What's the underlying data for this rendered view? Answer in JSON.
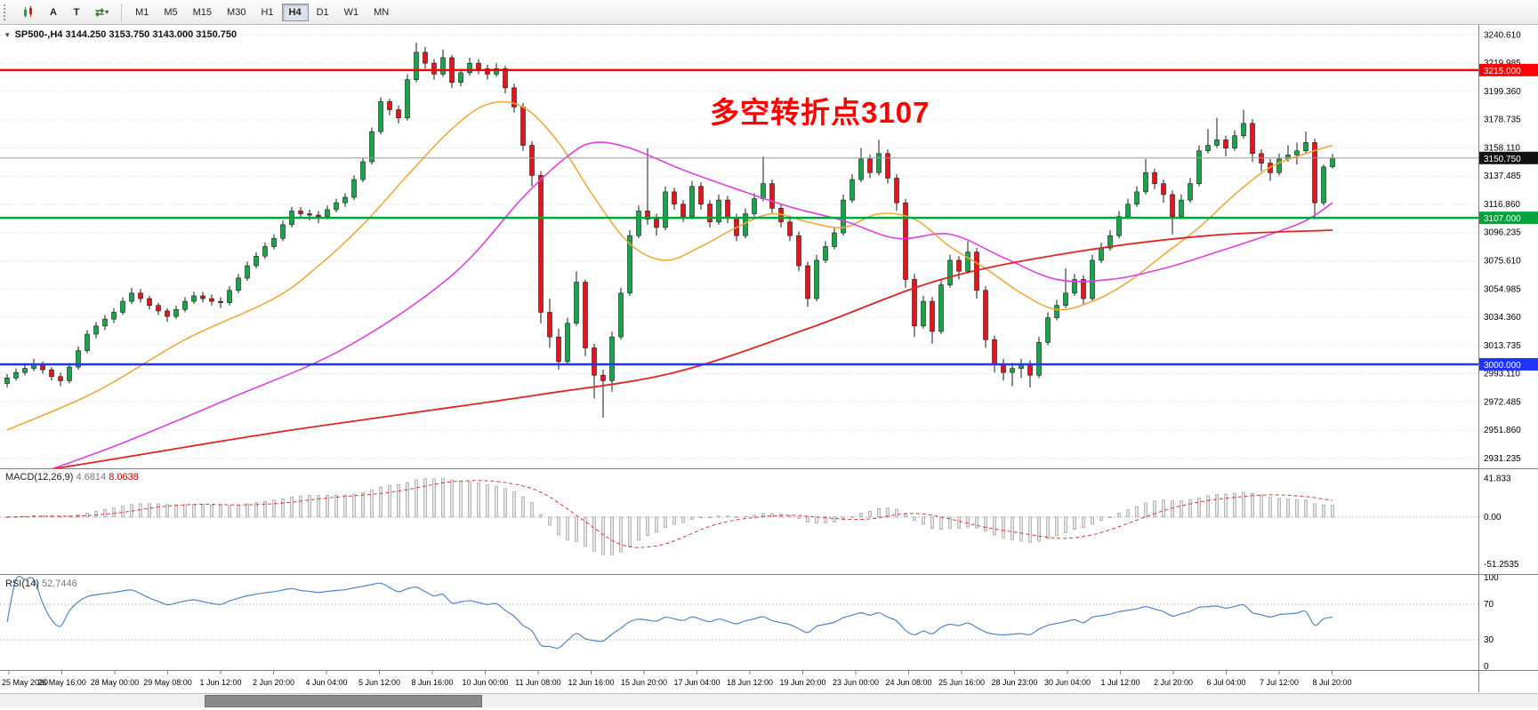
{
  "toolbar": {
    "tools": {
      "text_tool": "A",
      "label_tool": "T"
    },
    "timeframes": [
      {
        "label": "M1",
        "active": false
      },
      {
        "label": "M5",
        "active": false
      },
      {
        "label": "M15",
        "active": false
      },
      {
        "label": "M30",
        "active": false
      },
      {
        "label": "H1",
        "active": false
      },
      {
        "label": "H4",
        "active": true
      },
      {
        "label": "D1",
        "active": false
      },
      {
        "label": "W1",
        "active": false
      },
      {
        "label": "MN",
        "active": false
      }
    ]
  },
  "chart": {
    "title_symbol": "SP500-,H4",
    "title_ohlc": "3144.250 3153.750 3143.000 3150.750",
    "colors": {
      "up": "#18a64a",
      "down": "#e6151c"
    }
  },
  "indicators": {
    "macd": {
      "name": "MACD(12,26,9)",
      "value_main": "4.6814",
      "value_signal": "8.0638",
      "axis_labels": [
        "41.833",
        "0.00",
        "-51.2535"
      ]
    },
    "rsi": {
      "name": "RSI(14)",
      "value": "52.7446",
      "axis_labels": [
        "100",
        "70",
        "30",
        "0"
      ]
    }
  },
  "chart_data": {
    "type": "candlestick",
    "symbol": "SP500-",
    "timeframe": "H4",
    "ylim": [
      2924,
      3248
    ],
    "price_ticks": [
      "3240.610",
      "3219.985",
      "3199.360",
      "3178.735",
      "3158.110",
      "3137.485",
      "3116.860",
      "3096.235",
      "3075.610",
      "3054.985",
      "3034.360",
      "3013.735",
      "2993.110",
      "2972.485",
      "2951.860",
      "2931.235"
    ],
    "x_labels": [
      "25 May 2020",
      "26 May 16:00",
      "28 May 00:00",
      "29 May 08:00",
      "1 Jun 12:00",
      "2 Jun 20:00",
      "4 Jun 04:00",
      "5 Jun 12:00",
      "8 Jun 16:00",
      "10 Jun 00:00",
      "11 Jun 08:00",
      "12 Jun 16:00",
      "15 Jun 20:00",
      "17 Jun 04:00",
      "18 Jun 12:00",
      "19 Jun 20:00",
      "23 Jun 00:00",
      "24 Jun 08:00",
      "25 Jun 16:00",
      "28 Jun 23:00",
      "30 Jun 04:00",
      "1 Jul 12:00",
      "2 Jul 20:00",
      "6 Jul 04:00",
      "7 Jul 12:00",
      "8 Jul 20:00"
    ],
    "hlines": [
      {
        "price": 3215.0,
        "label": "3215.000",
        "color": "#ff0000",
        "width": 2.5
      },
      {
        "price": 3150.75,
        "label": "3150.750",
        "color": "#9b9b9b",
        "badge": "#111111",
        "width": 1
      },
      {
        "price": 3107.0,
        "label": "3107.000",
        "color": "#00a43b",
        "width": 2.5
      },
      {
        "price": 3000.0,
        "label": "3000.000",
        "color": "#1f35ff",
        "width": 2.5
      }
    ],
    "annotation": {
      "text": "多空转折点3107",
      "color": "#ff0000"
    },
    "indicator_panels": {
      "macd": {
        "params": [
          12,
          26,
          9
        ],
        "axis": [
          41.833,
          0,
          -51.2535
        ],
        "last_main": 4.6814,
        "last_signal": 8.0638
      },
      "rsi": {
        "period": 14,
        "levels": [
          70,
          30
        ],
        "axis": [
          100,
          70,
          30,
          0
        ],
        "last": 52.7446
      }
    },
    "ma_lines": [
      {
        "name": "ma-fast",
        "color": "#f2a93b",
        "points": [
          [
            0,
            2952
          ],
          [
            10,
            2980
          ],
          [
            20,
            3018
          ],
          [
            30,
            3048
          ],
          [
            35,
            3072
          ],
          [
            40,
            3102
          ],
          [
            45,
            3138
          ],
          [
            50,
            3172
          ],
          [
            54,
            3190
          ],
          [
            58,
            3188
          ],
          [
            62,
            3162
          ],
          [
            66,
            3122
          ],
          [
            70,
            3088
          ],
          [
            74,
            3076
          ],
          [
            78,
            3086
          ],
          [
            82,
            3100
          ],
          [
            86,
            3110
          ],
          [
            90,
            3104
          ],
          [
            94,
            3100
          ],
          [
            98,
            3110
          ],
          [
            102,
            3106
          ],
          [
            106,
            3086
          ],
          [
            110,
            3070
          ],
          [
            114,
            3052
          ],
          [
            118,
            3040
          ],
          [
            122,
            3046
          ],
          [
            126,
            3060
          ],
          [
            130,
            3080
          ],
          [
            134,
            3100
          ],
          [
            138,
            3124
          ],
          [
            142,
            3144
          ],
          [
            146,
            3154
          ],
          [
            149,
            3160
          ]
        ]
      },
      {
        "name": "ma-mid",
        "color": "#e040e0",
        "points": [
          [
            0,
            2912
          ],
          [
            12,
            2940
          ],
          [
            25,
            2975
          ],
          [
            38,
            3012
          ],
          [
            50,
            3065
          ],
          [
            58,
            3122
          ],
          [
            63,
            3152
          ],
          [
            66,
            3162
          ],
          [
            70,
            3158
          ],
          [
            76,
            3142
          ],
          [
            82,
            3128
          ],
          [
            88,
            3115
          ],
          [
            94,
            3105
          ],
          [
            100,
            3092
          ],
          [
            106,
            3095
          ],
          [
            112,
            3078
          ],
          [
            118,
            3062
          ],
          [
            124,
            3062
          ],
          [
            130,
            3070
          ],
          [
            136,
            3082
          ],
          [
            142,
            3095
          ],
          [
            146,
            3105
          ],
          [
            149,
            3118
          ]
        ]
      },
      {
        "name": "ma-slow",
        "color": "#e02525",
        "points": [
          [
            0,
            2918
          ],
          [
            15,
            2934
          ],
          [
            30,
            2950
          ],
          [
            45,
            2964
          ],
          [
            60,
            2978
          ],
          [
            75,
            2994
          ],
          [
            90,
            3026
          ],
          [
            105,
            3062
          ],
          [
            120,
            3082
          ],
          [
            135,
            3094
          ],
          [
            149,
            3098
          ]
        ]
      }
    ],
    "ohlc": [
      [
        2986,
        2993,
        2983,
        2990
      ],
      [
        2990,
        2997,
        2988,
        2994
      ],
      [
        2994,
        3000,
        2992,
        2997
      ],
      [
        2997,
        3004,
        2995,
        3000
      ],
      [
        3000,
        3002,
        2993,
        2996
      ],
      [
        2996,
        2998,
        2988,
        2991
      ],
      [
        2991,
        2994,
        2984,
        2988
      ],
      [
        2988,
        3001,
        2986,
        2998
      ],
      [
        2998,
        3013,
        2996,
        3010
      ],
      [
        3010,
        3025,
        3008,
        3022
      ],
      [
        3022,
        3031,
        3019,
        3028
      ],
      [
        3028,
        3036,
        3025,
        3033
      ],
      [
        3033,
        3041,
        3030,
        3038
      ],
      [
        3038,
        3049,
        3036,
        3046
      ],
      [
        3046,
        3056,
        3044,
        3052
      ],
      [
        3052,
        3055,
        3045,
        3048
      ],
      [
        3048,
        3050,
        3040,
        3043
      ],
      [
        3043,
        3045,
        3036,
        3039
      ],
      [
        3039,
        3041,
        3031,
        3035
      ],
      [
        3035,
        3043,
        3033,
        3040
      ],
      [
        3040,
        3049,
        3038,
        3046
      ],
      [
        3046,
        3053,
        3044,
        3050
      ],
      [
        3050,
        3053,
        3045,
        3048
      ],
      [
        3048,
        3051,
        3043,
        3046
      ],
      [
        3046,
        3049,
        3041,
        3045
      ],
      [
        3045,
        3057,
        3043,
        3054
      ],
      [
        3054,
        3066,
        3052,
        3063
      ],
      [
        3063,
        3075,
        3061,
        3072
      ],
      [
        3072,
        3082,
        3070,
        3079
      ],
      [
        3079,
        3089,
        3077,
        3086
      ],
      [
        3086,
        3095,
        3084,
        3092
      ],
      [
        3092,
        3105,
        3090,
        3102
      ],
      [
        3102,
        3115,
        3100,
        3112
      ],
      [
        3112,
        3115,
        3107,
        3110
      ],
      [
        3110,
        3113,
        3105,
        3109
      ],
      [
        3109,
        3112,
        3103,
        3108
      ],
      [
        3108,
        3116,
        3106,
        3113
      ],
      [
        3113,
        3121,
        3111,
        3118
      ],
      [
        3118,
        3125,
        3115,
        3122
      ],
      [
        3122,
        3138,
        3120,
        3135
      ],
      [
        3135,
        3151,
        3133,
        3148
      ],
      [
        3148,
        3173,
        3146,
        3170
      ],
      [
        3170,
        3195,
        3168,
        3192
      ],
      [
        3192,
        3194,
        3182,
        3186
      ],
      [
        3186,
        3189,
        3176,
        3180
      ],
      [
        3180,
        3212,
        3178,
        3208
      ],
      [
        3208,
        3235,
        3206,
        3228
      ],
      [
        3228,
        3232,
        3216,
        3220
      ],
      [
        3220,
        3223,
        3208,
        3212
      ],
      [
        3212,
        3230,
        3210,
        3224
      ],
      [
        3224,
        3226,
        3202,
        3206
      ],
      [
        3206,
        3216,
        3203,
        3213
      ],
      [
        3213,
        3224,
        3211,
        3220
      ],
      [
        3220,
        3223,
        3212,
        3216
      ],
      [
        3216,
        3219,
        3208,
        3212
      ],
      [
        3212,
        3220,
        3210,
        3216
      ],
      [
        3216,
        3218,
        3198,
        3202
      ],
      [
        3202,
        3205,
        3184,
        3188
      ],
      [
        3188,
        3191,
        3156,
        3160
      ],
      [
        3160,
        3163,
        3130,
        3138
      ],
      [
        3138,
        3141,
        3030,
        3038
      ],
      [
        3038,
        3048,
        3012,
        3020
      ],
      [
        3020,
        3026,
        2996,
        3002
      ],
      [
        3002,
        3034,
        3000,
        3030
      ],
      [
        3030,
        3068,
        3028,
        3060
      ],
      [
        3060,
        3062,
        3006,
        3012
      ],
      [
        3012,
        3015,
        2975,
        2992
      ],
      [
        2992,
        2996,
        2961,
        2988
      ],
      [
        2988,
        3024,
        2980,
        3020
      ],
      [
        3020,
        3056,
        3018,
        3052
      ],
      [
        3052,
        3098,
        3050,
        3094
      ],
      [
        3094,
        3116,
        3092,
        3112
      ],
      [
        3112,
        3158,
        3102,
        3106
      ],
      [
        3106,
        3110,
        3094,
        3100
      ],
      [
        3100,
        3130,
        3098,
        3126
      ],
      [
        3126,
        3129,
        3113,
        3117
      ],
      [
        3117,
        3120,
        3104,
        3108
      ],
      [
        3108,
        3134,
        3106,
        3130
      ],
      [
        3130,
        3133,
        3113,
        3117
      ],
      [
        3117,
        3120,
        3100,
        3104
      ],
      [
        3104,
        3124,
        3102,
        3120
      ],
      [
        3120,
        3123,
        3103,
        3107
      ],
      [
        3107,
        3110,
        3090,
        3094
      ],
      [
        3094,
        3114,
        3092,
        3110
      ],
      [
        3110,
        3125,
        3108,
        3121
      ],
      [
        3121,
        3152,
        3119,
        3132
      ],
      [
        3132,
        3135,
        3110,
        3114
      ],
      [
        3114,
        3117,
        3100,
        3104
      ],
      [
        3104,
        3107,
        3090,
        3094
      ],
      [
        3094,
        3097,
        3068,
        3072
      ],
      [
        3072,
        3075,
        3042,
        3048
      ],
      [
        3048,
        3080,
        3046,
        3076
      ],
      [
        3076,
        3090,
        3074,
        3086
      ],
      [
        3086,
        3100,
        3084,
        3096
      ],
      [
        3096,
        3124,
        3094,
        3120
      ],
      [
        3120,
        3139,
        3118,
        3135
      ],
      [
        3135,
        3158,
        3133,
        3150
      ],
      [
        3150,
        3153,
        3136,
        3140
      ],
      [
        3140,
        3164,
        3138,
        3154
      ],
      [
        3154,
        3157,
        3132,
        3136
      ],
      [
        3136,
        3139,
        3112,
        3118
      ],
      [
        3118,
        3121,
        3056,
        3062
      ],
      [
        3062,
        3066,
        3020,
        3028
      ],
      [
        3028,
        3050,
        3026,
        3046
      ],
      [
        3046,
        3049,
        3015,
        3024
      ],
      [
        3024,
        3062,
        3022,
        3058
      ],
      [
        3058,
        3080,
        3056,
        3076
      ],
      [
        3076,
        3079,
        3062,
        3068
      ],
      [
        3068,
        3090,
        3066,
        3082
      ],
      [
        3082,
        3085,
        3048,
        3054
      ],
      [
        3054,
        3057,
        3012,
        3018
      ],
      [
        3018,
        3021,
        2994,
        3000
      ],
      [
        3000,
        3004,
        2988,
        2994
      ],
      [
        2994,
        3001,
        2984,
        2997
      ],
      [
        2997,
        3004,
        2990,
        3000
      ],
      [
        3000,
        3003,
        2983,
        2992
      ],
      [
        2992,
        3020,
        2990,
        3016
      ],
      [
        3016,
        3038,
        3014,
        3034
      ],
      [
        3034,
        3047,
        3032,
        3043
      ],
      [
        3043,
        3070,
        3041,
        3052
      ],
      [
        3052,
        3066,
        3050,
        3062
      ],
      [
        3062,
        3065,
        3044,
        3048
      ],
      [
        3048,
        3080,
        3046,
        3076
      ],
      [
        3076,
        3089,
        3074,
        3085
      ],
      [
        3085,
        3098,
        3083,
        3094
      ],
      [
        3094,
        3112,
        3092,
        3108
      ],
      [
        3108,
        3121,
        3106,
        3117
      ],
      [
        3117,
        3130,
        3115,
        3126
      ],
      [
        3126,
        3150,
        3124,
        3140
      ],
      [
        3140,
        3143,
        3128,
        3132
      ],
      [
        3132,
        3135,
        3118,
        3124
      ],
      [
        3124,
        3127,
        3095,
        3108
      ],
      [
        3108,
        3124,
        3106,
        3120
      ],
      [
        3120,
        3136,
        3118,
        3132
      ],
      [
        3132,
        3160,
        3130,
        3156
      ],
      [
        3156,
        3172,
        3154,
        3160
      ],
      [
        3160,
        3180,
        3158,
        3164
      ],
      [
        3164,
        3167,
        3152,
        3158
      ],
      [
        3158,
        3171,
        3156,
        3167
      ],
      [
        3167,
        3186,
        3165,
        3176
      ],
      [
        3176,
        3179,
        3148,
        3154
      ],
      [
        3154,
        3157,
        3141,
        3147
      ],
      [
        3147,
        3150,
        3134,
        3140
      ],
      [
        3140,
        3154,
        3138,
        3150
      ],
      [
        3150,
        3160,
        3148,
        3153
      ],
      [
        3153,
        3162,
        3146,
        3156
      ],
      [
        3156,
        3170,
        3154,
        3162
      ],
      [
        3162,
        3165,
        3106,
        3118
      ],
      [
        3118,
        3146,
        3116,
        3144.25
      ],
      [
        3144.25,
        3153.75,
        3143,
        3150.75
      ]
    ]
  }
}
